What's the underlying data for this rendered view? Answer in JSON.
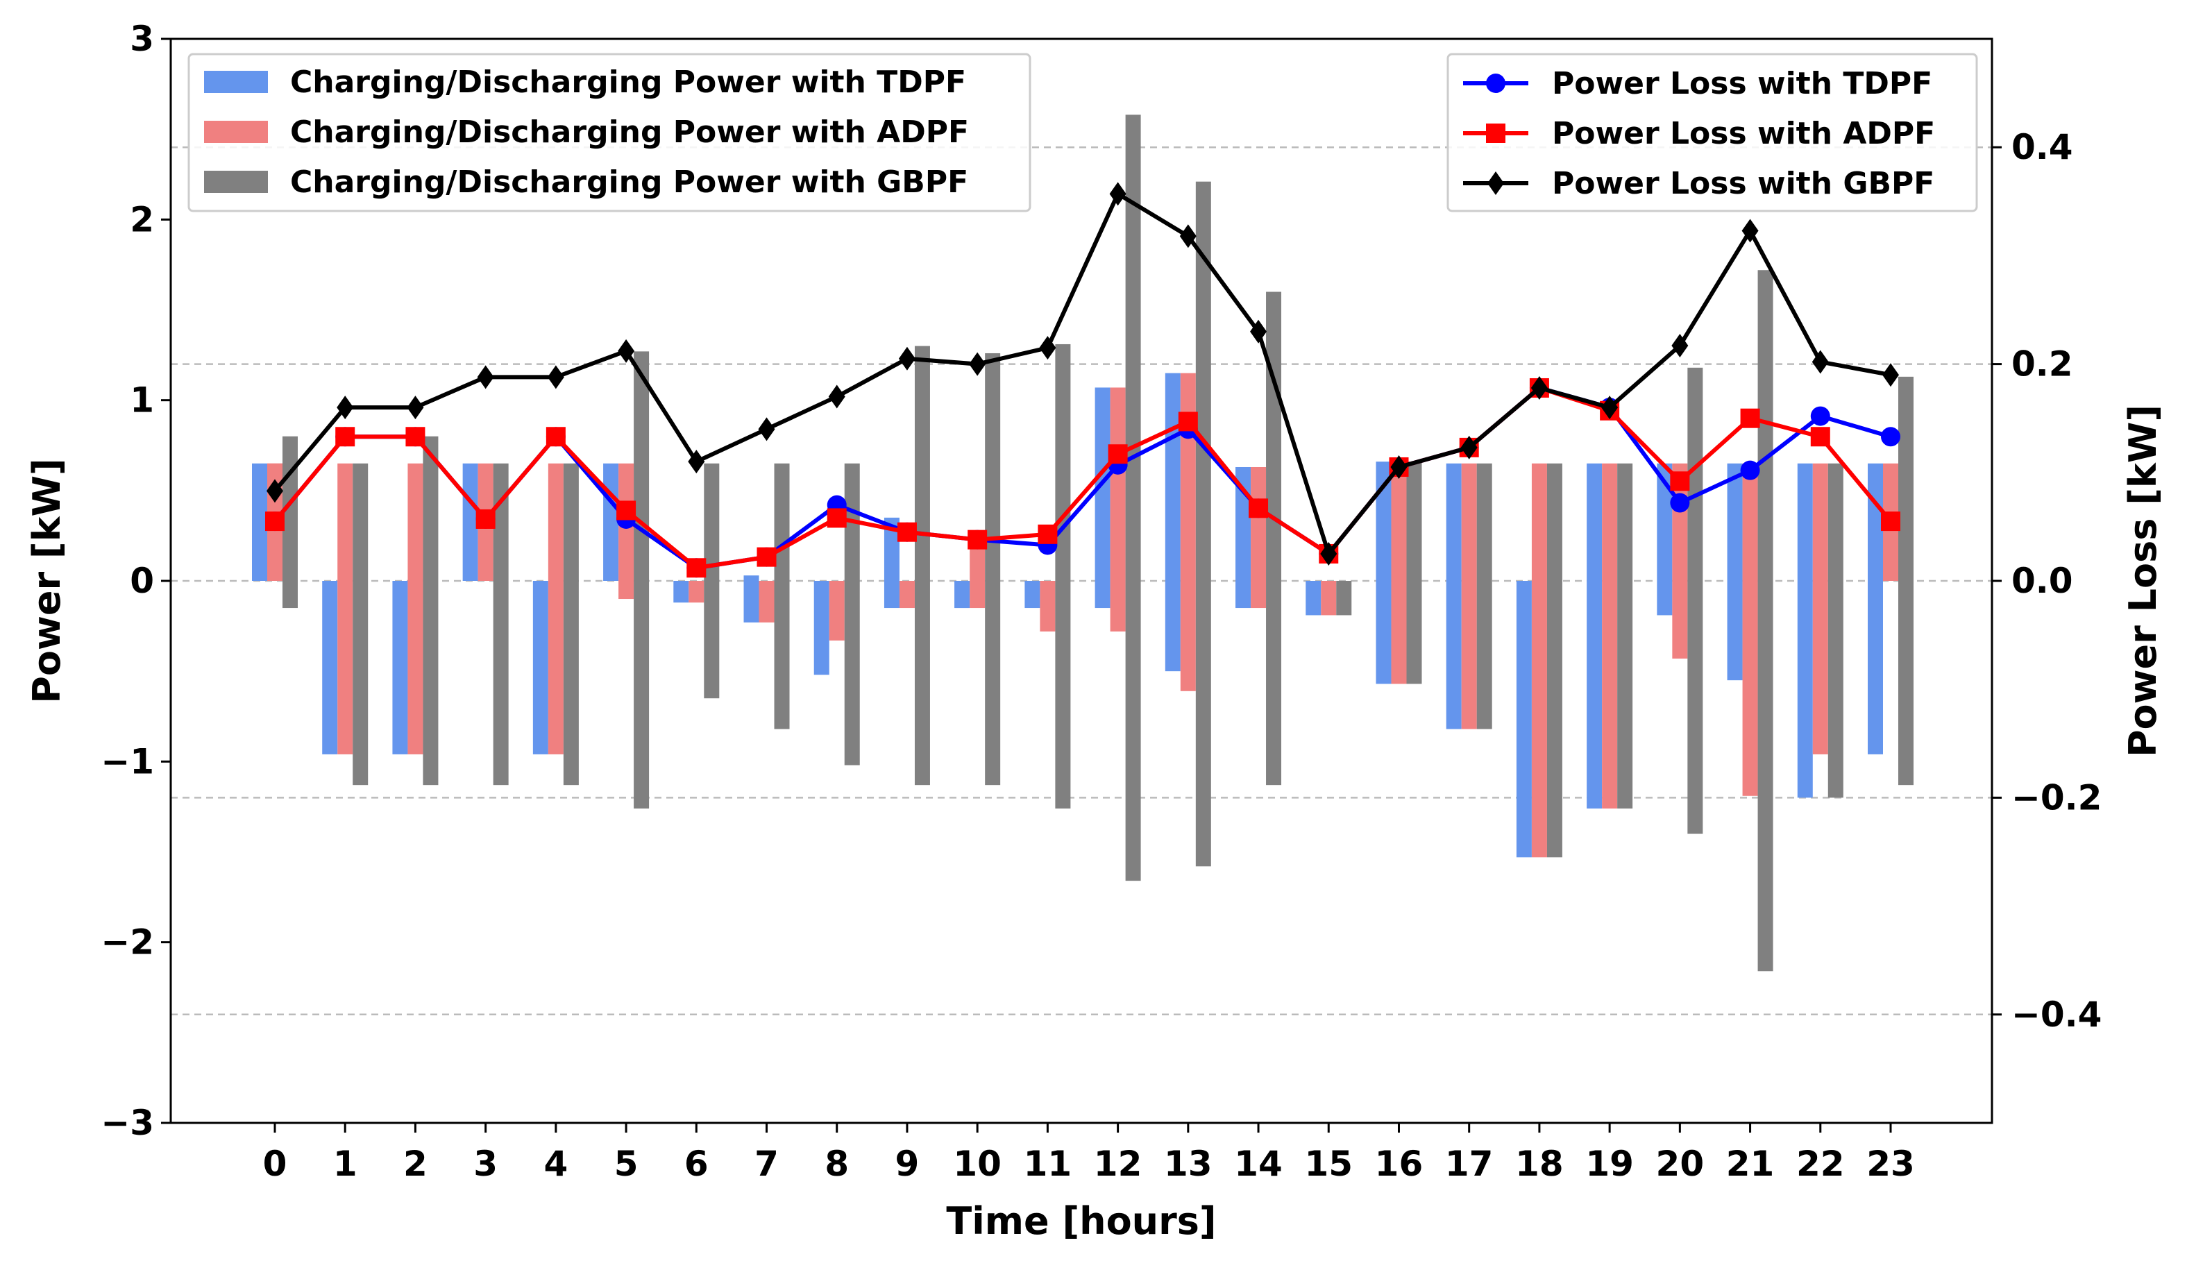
{
  "chart_data": {
    "type": "bar+line",
    "title": "",
    "xlabel": "Time [hours]",
    "ylabel": "Power [kW]",
    "y2label": "Power Loss [kW]",
    "ylim": [
      -3,
      3
    ],
    "y2lim": [
      -0.5,
      0.5
    ],
    "yticks": [
      -3,
      -2,
      -1,
      0,
      1,
      2,
      3
    ],
    "y2ticks": [
      -0.4,
      -0.2,
      0.0,
      0.2,
      0.4
    ],
    "yticklabels": [
      "−3",
      "−2",
      "−1",
      "0",
      "1",
      "2",
      "3"
    ],
    "y2ticklabels": [
      "−0.4",
      "−0.2",
      "0.0",
      "0.2",
      "0.4"
    ],
    "y2grid_values": [
      -0.4,
      -0.2,
      0.0,
      0.2,
      0.4
    ],
    "categories": [
      "0",
      "1",
      "2",
      "3",
      "4",
      "5",
      "6",
      "7",
      "8",
      "9",
      "10",
      "11",
      "12",
      "13",
      "14",
      "15",
      "16",
      "17",
      "18",
      "19",
      "20",
      "21",
      "22",
      "23"
    ],
    "bar_series": [
      {
        "name": "Charging/Discharging Power with TDPF",
        "color": "#6495ED",
        "values": [
          0.65,
          -0.96,
          -0.96,
          0.65,
          -0.96,
          0.65,
          -0.12,
          0.03,
          -0.52,
          0.35,
          -0.15,
          -0.15,
          1.07,
          1.15,
          0.63,
          -0.19,
          0.66,
          0.65,
          -1.53,
          0.65,
          0.65,
          0.65,
          0.65,
          0.65
        ]
      },
      {
        "name": "Charging/Discharging Power with ADPF",
        "color": "#F08080",
        "values": [
          0.65,
          -0.96,
          -0.96,
          0.65,
          -0.96,
          -0.1,
          -0.12,
          -0.23,
          -0.33,
          -0.15,
          0.28,
          -0.28,
          -0.28,
          1.15,
          -0.15,
          -0.19,
          -0.57,
          -0.82,
          0.65,
          -1.26,
          -0.43,
          -1.19,
          -0.96,
          0.65
        ]
      },
      {
        "name": "Charging/Discharging Power with GBPF",
        "color": "#808080",
        "values": [
          0.8,
          -1.13,
          0.8,
          -1.13,
          -1.13,
          1.27,
          -0.65,
          -0.82,
          -1.02,
          1.3,
          1.26,
          1.31,
          2.58,
          2.21,
          1.6,
          -0.19,
          -0.57,
          -0.82,
          0.65,
          -1.26,
          1.18,
          1.72,
          -1.2,
          1.13
        ]
      }
    ],
    "bar_series_negative_extra": [
      {
        "name": "Charging/Discharging Power with TDPF",
        "values": [
          0.0,
          0.0,
          0.0,
          0.0,
          0.0,
          0.0,
          0.0,
          -0.23,
          0.0,
          -0.15,
          -0.15,
          0.0,
          -0.15,
          -0.5,
          -0.15,
          0.0,
          -0.57,
          -0.82,
          0.0,
          -1.26,
          -0.19,
          -0.55,
          -1.2,
          -0.96
        ]
      },
      {
        "name": "Charging/Discharging Power with ADPF",
        "values": [
          0.65,
          0.65,
          0.65,
          0.0,
          0.65,
          0.65,
          0.0,
          0.0,
          0.0,
          0.0,
          -0.15,
          0.0,
          1.07,
          -0.61,
          0.63,
          0.0,
          0.66,
          0.65,
          -1.53,
          0.65,
          0.65,
          0.65,
          0.65,
          0.0
        ]
      },
      {
        "name": "Charging/Discharging Power with GBPF",
        "values": [
          -0.15,
          0.65,
          -1.13,
          0.65,
          0.65,
          -1.26,
          0.65,
          0.65,
          0.65,
          -1.13,
          -1.13,
          -1.26,
          -1.66,
          -1.58,
          -1.13,
          0.0,
          0.66,
          0.65,
          -1.53,
          0.65,
          -1.4,
          -2.16,
          0.65,
          -1.13
        ]
      }
    ],
    "line_series": [
      {
        "name": "Power Loss with TDPF",
        "color": "#0000FF",
        "marker": "circle",
        "values": [
          0.055,
          0.133,
          0.133,
          0.057,
          0.133,
          0.057,
          0.012,
          0.022,
          0.07,
          0.045,
          0.038,
          0.033,
          0.107,
          0.14,
          0.067,
          0.025,
          0.105,
          0.123,
          0.178,
          0.16,
          0.072,
          0.102,
          0.152,
          0.133
        ]
      },
      {
        "name": "Power Loss with ADPF",
        "color": "#FF0000",
        "marker": "square",
        "values": [
          0.055,
          0.133,
          0.133,
          0.057,
          0.133,
          0.065,
          0.012,
          0.022,
          0.058,
          0.045,
          0.038,
          0.043,
          0.117,
          0.147,
          0.067,
          0.025,
          0.105,
          0.123,
          0.178,
          0.157,
          0.092,
          0.15,
          0.133,
          0.055
        ]
      },
      {
        "name": "Power Loss with GBPF",
        "color": "#000000",
        "marker": "diamond",
        "values": [
          0.083,
          0.16,
          0.16,
          0.188,
          0.188,
          0.212,
          0.11,
          0.14,
          0.17,
          0.205,
          0.2,
          0.215,
          0.357,
          0.318,
          0.23,
          0.025,
          0.105,
          0.123,
          0.178,
          0.16,
          0.217,
          0.323,
          0.202,
          0.19
        ]
      }
    ],
    "legend_left_position": "upper-left",
    "legend_right_position": "upper-right",
    "grid": "horizontal-dashed"
  }
}
